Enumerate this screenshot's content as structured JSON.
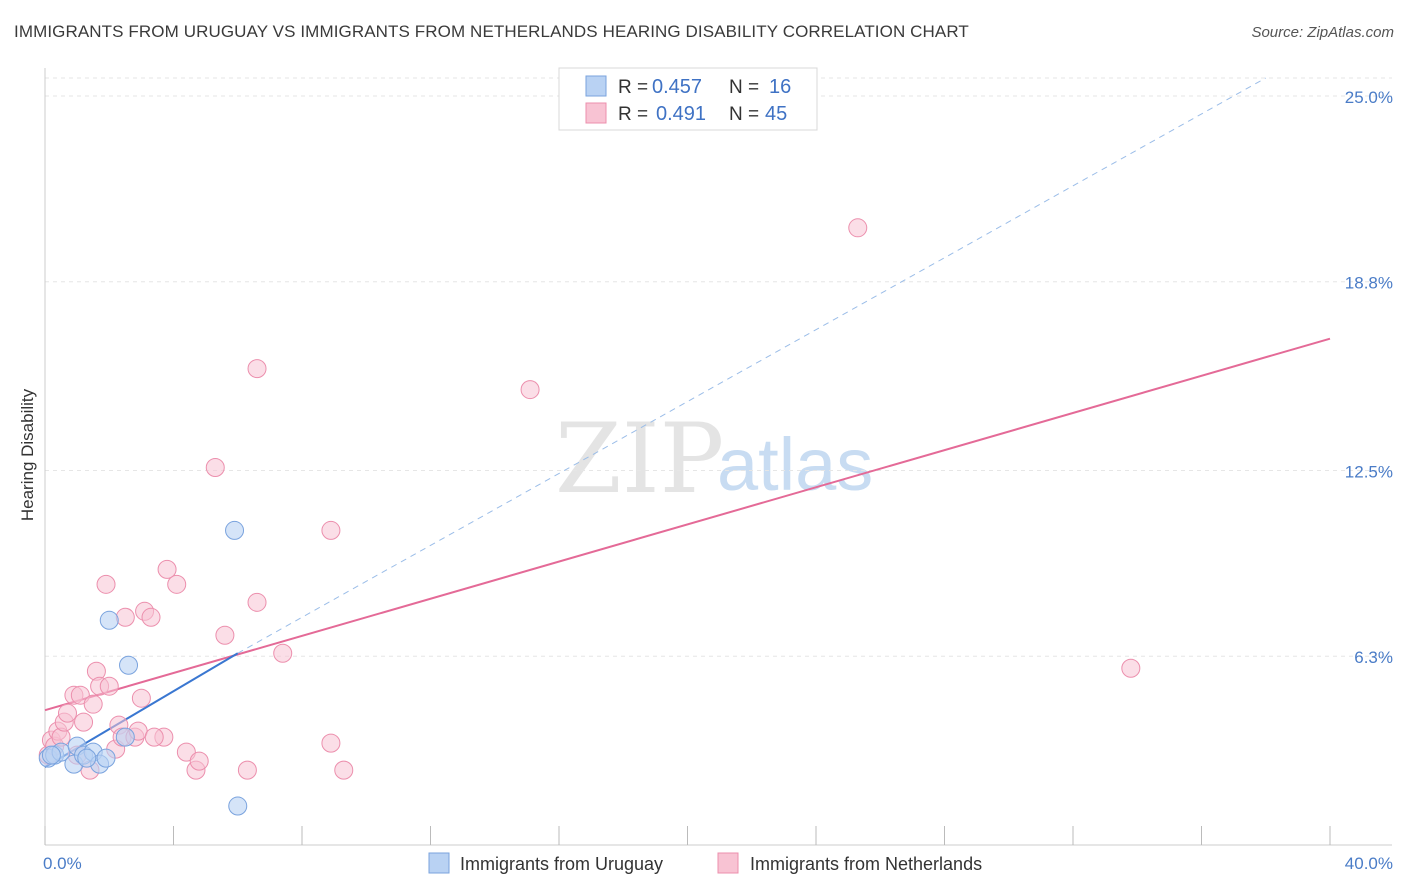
{
  "header": {
    "title": "IMMIGRANTS FROM URUGUAY VS IMMIGRANTS FROM NETHERLANDS HEARING DISABILITY CORRELATION CHART",
    "source": "Source: ZipAtlas.com"
  },
  "watermark": {
    "zip": "ZIP",
    "atlas": "atlas"
  },
  "colors": {
    "uruguay_fill": "#b9d2f3",
    "uruguay_stroke": "#7aa3de",
    "uruguay_line": "#3a77d1",
    "netherlands_fill": "#f8c3d3",
    "netherlands_stroke": "#ec8fad",
    "netherlands_line": "#e46a97",
    "grid": "#e6e6e6",
    "tick_label": "#4a7cc7"
  },
  "legend_box": {
    "rows": [
      {
        "r_label": "R =",
        "r_value": "0.457",
        "n_label": "N =",
        "n_value": "16"
      },
      {
        "r_label": "R =",
        "r_value": "0.491",
        "n_label": "N =",
        "n_value": "45"
      }
    ]
  },
  "bottom_legend": {
    "items": [
      {
        "label": "Immigrants from Uruguay"
      },
      {
        "label": "Immigrants from Netherlands"
      }
    ]
  },
  "chart_data": {
    "type": "scatter",
    "title": "IMMIGRANTS FROM URUGUAY VS IMMIGRANTS FROM NETHERLANDS HEARING DISABILITY CORRELATION CHART",
    "xlabel": "",
    "ylabel": "Hearing Disability",
    "xlim": [
      0,
      40
    ],
    "ylim": [
      0,
      25.6
    ],
    "x_tick_labels": [
      "0.0%",
      "40.0%"
    ],
    "y_ticks": [
      6.3,
      12.5,
      18.8,
      25.0
    ],
    "y_tick_labels": [
      "6.3%",
      "12.5%",
      "18.8%",
      "25.0%"
    ],
    "grid": true,
    "legend_position": "top-center",
    "series": [
      {
        "name": "Immigrants from Uruguay",
        "R": 0.457,
        "N": 16,
        "points": [
          [
            0.1,
            2.9
          ],
          [
            0.3,
            3.0
          ],
          [
            0.5,
            3.1
          ],
          [
            0.9,
            2.7
          ],
          [
            1.0,
            3.3
          ],
          [
            1.2,
            3.0
          ],
          [
            1.5,
            3.1
          ],
          [
            1.7,
            2.7
          ],
          [
            1.9,
            2.9
          ],
          [
            2.0,
            7.5
          ],
          [
            2.6,
            6.0
          ],
          [
            2.5,
            3.6
          ],
          [
            5.9,
            10.5
          ],
          [
            6.0,
            1.3
          ],
          [
            1.3,
            2.9
          ],
          [
            0.2,
            3.0
          ]
        ],
        "trend": {
          "x0": 0,
          "y0": 2.6,
          "x1": 6.0,
          "y1": 6.4
        },
        "trend_extension": {
          "x0": 6.0,
          "y0": 6.4,
          "x1": 38.0,
          "y1": 25.6
        }
      },
      {
        "name": "Immigrants from Netherlands",
        "R": 0.491,
        "N": 45,
        "points": [
          [
            0.1,
            3.0
          ],
          [
            0.2,
            3.5
          ],
          [
            0.3,
            3.3
          ],
          [
            0.4,
            3.8
          ],
          [
            0.5,
            3.6
          ],
          [
            0.6,
            4.1
          ],
          [
            0.7,
            4.4
          ],
          [
            0.9,
            5.0
          ],
          [
            1.0,
            3.0
          ],
          [
            1.1,
            5.0
          ],
          [
            1.2,
            4.1
          ],
          [
            1.4,
            2.5
          ],
          [
            1.5,
            4.7
          ],
          [
            1.6,
            5.8
          ],
          [
            1.7,
            5.3
          ],
          [
            1.9,
            8.7
          ],
          [
            2.0,
            5.3
          ],
          [
            2.2,
            3.2
          ],
          [
            2.3,
            4.0
          ],
          [
            2.4,
            3.6
          ],
          [
            2.5,
            7.6
          ],
          [
            2.8,
            3.6
          ],
          [
            2.9,
            3.8
          ],
          [
            3.0,
            4.9
          ],
          [
            3.1,
            7.8
          ],
          [
            3.3,
            7.6
          ],
          [
            3.7,
            3.6
          ],
          [
            3.8,
            9.2
          ],
          [
            4.1,
            8.7
          ],
          [
            4.4,
            3.1
          ],
          [
            4.7,
            2.5
          ],
          [
            4.8,
            2.8
          ],
          [
            5.3,
            12.6
          ],
          [
            5.6,
            7.0
          ],
          [
            6.3,
            2.5
          ],
          [
            6.6,
            15.9
          ],
          [
            6.6,
            8.1
          ],
          [
            7.4,
            6.4
          ],
          [
            8.9,
            10.5
          ],
          [
            8.9,
            3.4
          ],
          [
            9.3,
            2.5
          ],
          [
            15.1,
            15.2
          ],
          [
            25.3,
            20.6
          ],
          [
            33.8,
            5.9
          ],
          [
            3.4,
            3.6
          ]
        ],
        "trend": {
          "x0": 0,
          "y0": 4.5,
          "x1": 40.0,
          "y1": 16.9
        }
      }
    ]
  }
}
